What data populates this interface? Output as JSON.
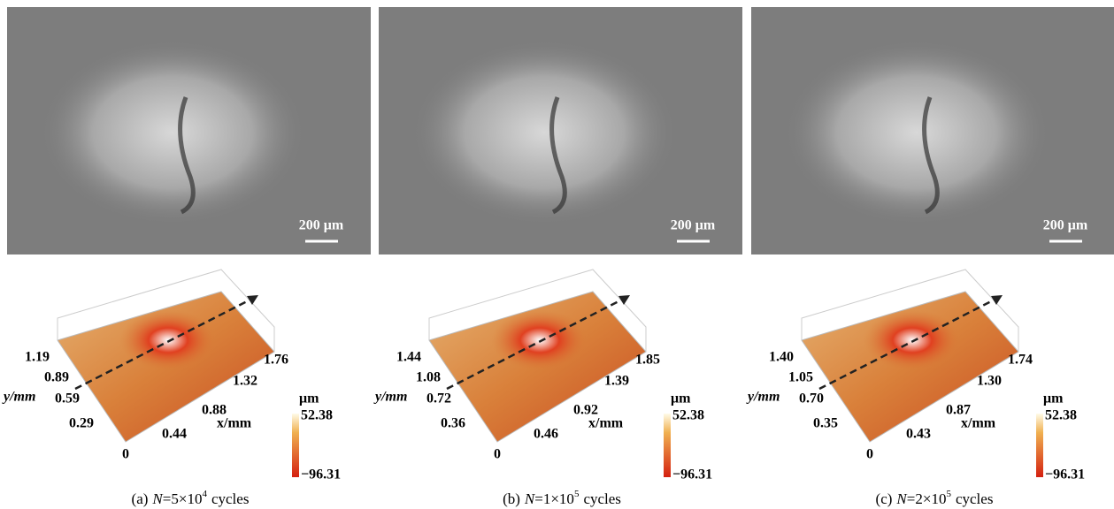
{
  "panels": [
    {
      "scale_bar": "200 μm",
      "y_label": "y/mm",
      "x_label": "x/mm",
      "y_ticks": [
        "1.19",
        "0.89",
        "0.59",
        "0.29"
      ],
      "origin": "0",
      "x_ticks": [
        "0.44",
        "0.88",
        "1.32",
        "1.76"
      ],
      "colorbar_unit": "μm",
      "colorbar_max": "52.38",
      "colorbar_min": "−96.31",
      "caption": {
        "label": "(a)",
        "var": "N",
        "text": "=5×10",
        "exp": "4",
        "suffix": "cycles"
      }
    },
    {
      "scale_bar": "200 μm",
      "y_label": "y/mm",
      "x_label": "x/mm",
      "y_ticks": [
        "1.44",
        "1.08",
        "0.72",
        "0.36"
      ],
      "origin": "0",
      "x_ticks": [
        "0.46",
        "0.92",
        "1.39",
        "1.85"
      ],
      "colorbar_unit": "μm",
      "colorbar_max": "52.38",
      "colorbar_min": "−96.31",
      "caption": {
        "label": "(b)",
        "var": "N",
        "text": "=1×10",
        "exp": "5",
        "suffix": "cycles"
      }
    },
    {
      "scale_bar": "200 μm",
      "y_label": "y/mm",
      "x_label": "x/mm",
      "y_ticks": [
        "1.40",
        "1.05",
        "0.70",
        "0.35"
      ],
      "origin": "0",
      "x_ticks": [
        "0.43",
        "0.87",
        "1.30",
        "1.74"
      ],
      "colorbar_unit": "μm",
      "colorbar_max": "52.38",
      "colorbar_min": "−96.31",
      "caption": {
        "label": "(c)",
        "var": "N",
        "text": "=2×10",
        "exp": "5",
        "suffix": "cycles"
      }
    }
  ]
}
